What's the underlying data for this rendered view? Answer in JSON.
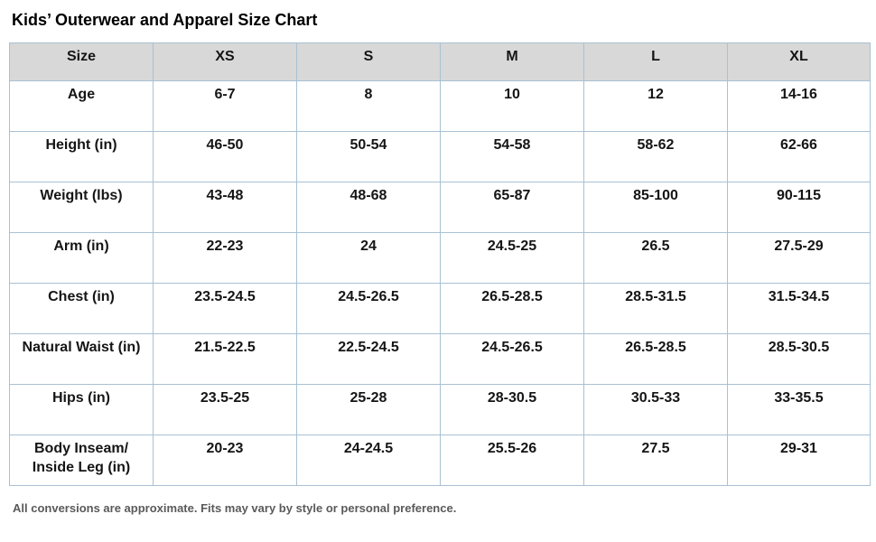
{
  "title": "Kids’ Outerwear and Apparel Size Chart",
  "table": {
    "header": [
      "Size",
      "XS",
      "S",
      "M",
      "L",
      "XL"
    ],
    "rows": [
      {
        "label": "Age",
        "values": [
          "6-7",
          "8",
          "10",
          "12",
          "14-16"
        ]
      },
      {
        "label": "Height (in)",
        "values": [
          "46-50",
          "50-54",
          "54-58",
          "58-62",
          "62-66"
        ]
      },
      {
        "label": "Weight (lbs)",
        "values": [
          "43-48",
          "48-68",
          "65-87",
          "85-100",
          "90-115"
        ]
      },
      {
        "label": "Arm (in)",
        "values": [
          "22-23",
          "24",
          "24.5-25",
          "26.5",
          "27.5-29"
        ]
      },
      {
        "label": "Chest (in)",
        "values": [
          "23.5-24.5",
          "24.5-26.5",
          "26.5-28.5",
          "28.5-31.5",
          "31.5-34.5"
        ]
      },
      {
        "label": "Natural Waist (in)",
        "values": [
          "21.5-22.5",
          "22.5-24.5",
          "24.5-26.5",
          "26.5-28.5",
          "28.5-30.5"
        ]
      },
      {
        "label": "Hips (in)",
        "values": [
          "23.5-25",
          "25-28",
          "28-30.5",
          "30.5-33",
          "33-35.5"
        ]
      },
      {
        "label": "Body Inseam/ Inside Leg (in)",
        "values": [
          "20-23",
          "24-24.5",
          "25.5-26",
          "27.5",
          "29-31"
        ]
      }
    ]
  },
  "footnote": "All conversions are approximate. Fits may vary by style or personal preference.",
  "colors": {
    "header_bg": "#d8d8d8",
    "border": "#a9c1d3",
    "footnote_text": "#5a5a5a"
  }
}
